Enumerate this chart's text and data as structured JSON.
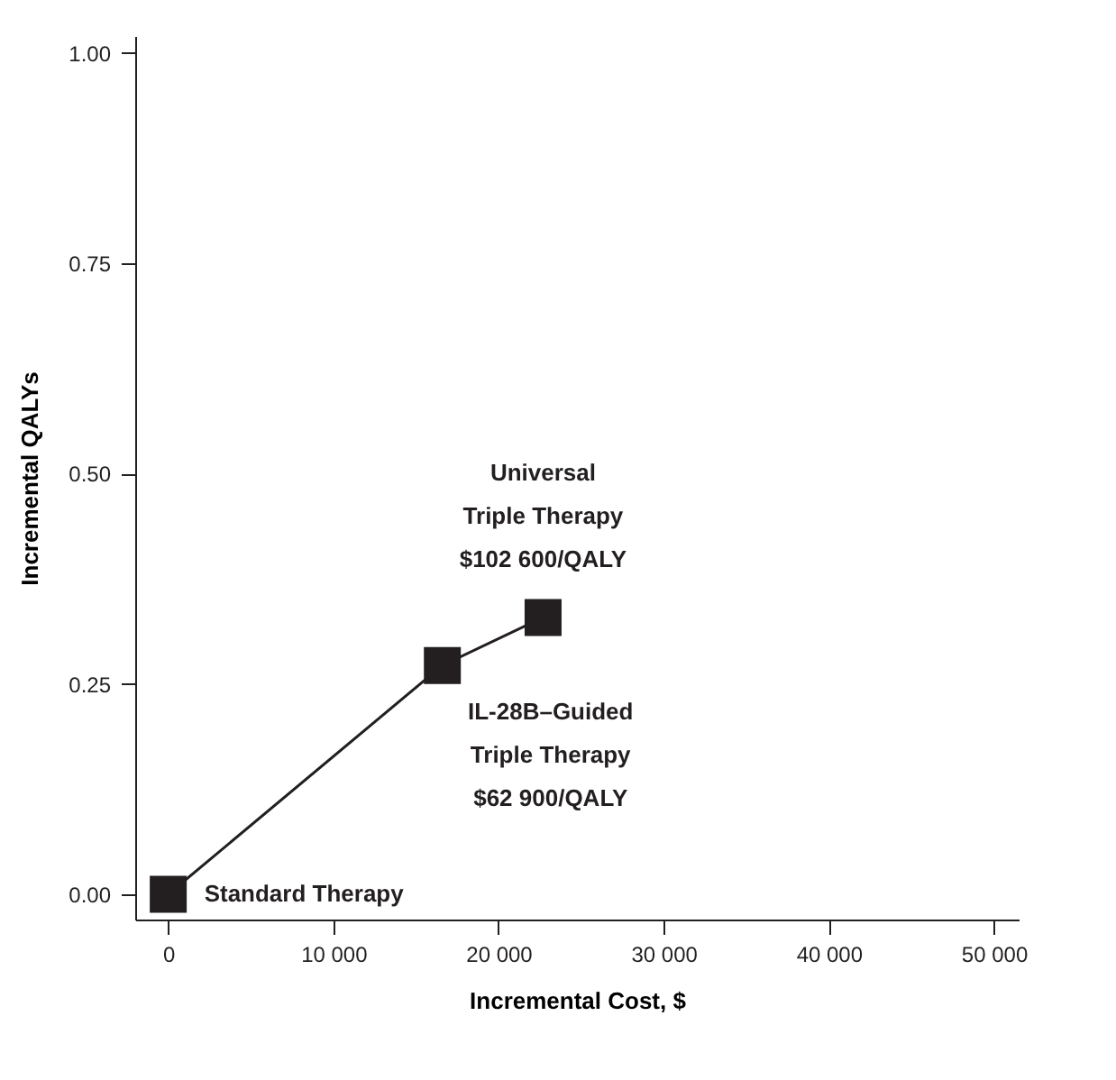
{
  "chart_data": {
    "type": "line",
    "xlabel": "Incremental Cost, $",
    "ylabel": "Incremental QALYs",
    "x": [
      0,
      16600,
      22700
    ],
    "series": [
      {
        "color": "#231f20",
        "values": [
          0,
          0.272,
          0.329
        ]
      }
    ],
    "marker": "square",
    "line_style": "solid",
    "xlim": [
      -2000,
      51500
    ],
    "xticks": [
      {
        "value": 0,
        "label": "0"
      },
      {
        "value": 10000,
        "label": "10 000"
      },
      {
        "value": 20000,
        "label": "20 000"
      },
      {
        "value": 30000,
        "label": "30 000"
      },
      {
        "value": 40000,
        "label": "40 000"
      },
      {
        "value": 50000,
        "label": "50 000"
      }
    ],
    "ylim": [
      -0.03,
      1.02
    ],
    "yticks": [
      {
        "value": 0,
        "label": "0.00"
      },
      {
        "value": 0.25,
        "label": "0.25"
      },
      {
        "value": 0.5,
        "label": "0.50"
      },
      {
        "value": 0.75,
        "label": "0.75"
      },
      {
        "value": 1,
        "label": "1.00"
      }
    ],
    "grid": false,
    "annotations": [
      {
        "text": "Standard Therapy",
        "x": 0,
        "y": 0
      },
      {
        "text": "IL-28B–Guided\nTriple Therapy\n$62 900/QALY",
        "x": 16600,
        "y": 0.272
      },
      {
        "text": "Universal\nTriple Therapy\n$102 600/QALY",
        "x": 22700,
        "y": 0.329
      }
    ]
  }
}
